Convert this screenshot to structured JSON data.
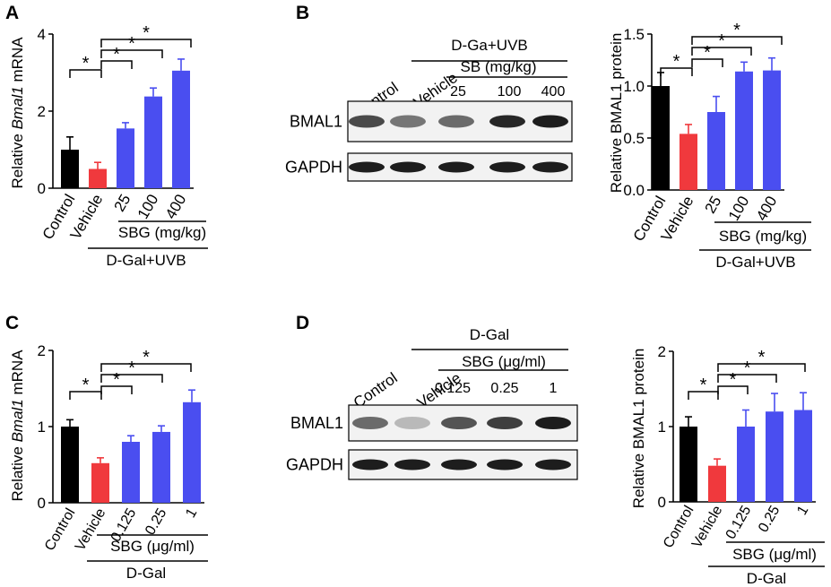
{
  "panels": [
    {
      "letter": "A"
    },
    {
      "letter": "B"
    },
    {
      "letter": "C"
    },
    {
      "letter": "D"
    }
  ],
  "colors": {
    "control": "#000000",
    "vehicle": "#f0393d",
    "treatment": "#4a4ef0"
  },
  "significance_mark": "*",
  "chart_data": [
    {
      "panel": "A",
      "type": "bar",
      "ylabel_prefix": "Relative ",
      "ylabel_italic": "Bmal1",
      "ylabel_suffix": " mRNA",
      "categories": [
        "Control",
        "Vehicle",
        "25",
        "100",
        "400"
      ],
      "values": [
        1.0,
        0.5,
        1.55,
        2.38,
        3.05
      ],
      "errors": [
        0.33,
        0.17,
        0.15,
        0.22,
        0.3
      ],
      "ylim": [
        0,
        4
      ],
      "yticks": [
        "0",
        "2",
        "4"
      ],
      "ytick_values": [
        0,
        2,
        4
      ],
      "group_label": "SBG (mg/kg)",
      "condition_label": "D-Gal+UVB",
      "comparisons": [
        [
          0,
          1
        ],
        [
          1,
          2
        ],
        [
          1,
          3
        ],
        [
          1,
          4
        ]
      ]
    },
    {
      "panel": "B",
      "type": "bar",
      "ylabel": "Relative BMAL1 protein",
      "categories": [
        "Control",
        "Vehicle",
        "25",
        "100",
        "400"
      ],
      "values": [
        1.0,
        0.54,
        0.75,
        1.14,
        1.15
      ],
      "errors": [
        0.13,
        0.09,
        0.15,
        0.09,
        0.12
      ],
      "ylim": [
        0,
        1.5
      ],
      "yticks": [
        "0.0",
        "0.5",
        "1.0",
        "1.5"
      ],
      "ytick_values": [
        0,
        0.5,
        1.0,
        1.5
      ],
      "group_label": "SBG (mg/kg)",
      "condition_label": "D-Gal+UVB",
      "comparisons": [
        [
          0,
          1
        ],
        [
          1,
          2
        ],
        [
          1,
          3
        ],
        [
          1,
          4
        ]
      ]
    },
    {
      "panel": "C",
      "type": "bar",
      "ylabel_prefix": "Relative ",
      "ylabel_italic": "Bmal1",
      "ylabel_suffix": " mRNA",
      "categories": [
        "Control",
        "Vehicle",
        "0.125",
        "0.25",
        "1"
      ],
      "values": [
        1.0,
        0.52,
        0.8,
        0.93,
        1.32
      ],
      "errors": [
        0.09,
        0.07,
        0.08,
        0.08,
        0.16
      ],
      "ylim": [
        0,
        2
      ],
      "yticks": [
        "0",
        "1",
        "2"
      ],
      "ytick_values": [
        0,
        1,
        2
      ],
      "group_label": "SBG (μg/ml)",
      "condition_label": "D-Gal",
      "comparisons": [
        [
          0,
          1
        ],
        [
          1,
          2
        ],
        [
          1,
          3
        ],
        [
          1,
          4
        ]
      ]
    },
    {
      "panel": "D",
      "type": "bar",
      "ylabel": "Relative BMAL1 protein",
      "categories": [
        "Control",
        "Vehicle",
        "0.125",
        "0.25",
        "1"
      ],
      "values": [
        1.0,
        0.48,
        1.0,
        1.2,
        1.22
      ],
      "errors": [
        0.13,
        0.09,
        0.22,
        0.24,
        0.23
      ],
      "ylim": [
        0,
        2
      ],
      "yticks": [
        "0",
        "1",
        "2"
      ],
      "ytick_values": [
        0,
        1,
        2
      ],
      "group_label": "SBG (μg/ml)",
      "condition_label": "D-Gal",
      "comparisons": [
        [
          0,
          1
        ],
        [
          1,
          2
        ],
        [
          1,
          3
        ],
        [
          1,
          4
        ]
      ]
    }
  ],
  "blots": [
    {
      "panel": "B",
      "condition_label": "D-Ga+UVB",
      "dose_label": "SB (mg/kg)",
      "lanes": [
        "Control",
        "Vehicle",
        "25",
        "100",
        "400"
      ],
      "rows": [
        {
          "label": "BMAL1",
          "intensity": [
            0.75,
            0.55,
            0.6,
            0.9,
            0.95
          ]
        },
        {
          "label": "GAPDH",
          "intensity": [
            0.95,
            0.95,
            0.95,
            0.95,
            0.95
          ]
        }
      ]
    },
    {
      "panel": "D",
      "condition_label": "D-Gal",
      "dose_label": "SBG (μg/ml)",
      "lanes": [
        "Control",
        "Vehicle",
        "0.125",
        "0.25",
        "1"
      ],
      "rows": [
        {
          "label": "BMAL1",
          "intensity": [
            0.6,
            0.25,
            0.7,
            0.8,
            0.95
          ]
        },
        {
          "label": "GAPDH",
          "intensity": [
            0.95,
            0.95,
            0.95,
            0.95,
            0.95
          ]
        }
      ]
    }
  ]
}
